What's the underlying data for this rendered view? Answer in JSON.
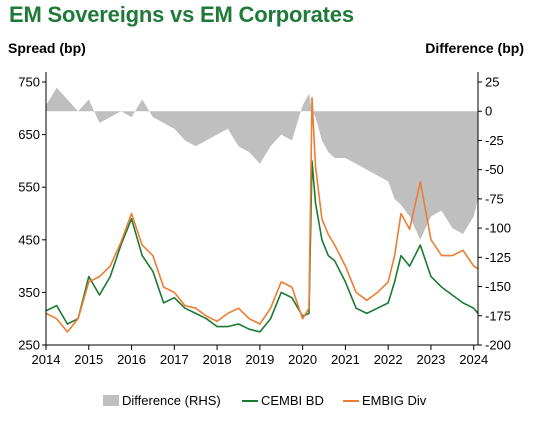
{
  "chart_data": {
    "type": "line",
    "title": "EM Sovereigns vs EM Corporates",
    "ylabel_left": "Spread (bp)",
    "ylabel_right": "Difference (bp)",
    "ylim_left": [
      250,
      750
    ],
    "ylim_right": [
      -200,
      25
    ],
    "yticks_left": [
      "750",
      "650",
      "550",
      "450",
      "350",
      "250"
    ],
    "yticks_right": [
      "25",
      "0",
      "-25",
      "-50",
      "-75",
      "-100",
      "-125",
      "-150",
      "-175",
      "-200"
    ],
    "xticks": [
      "2014",
      "2015",
      "2016",
      "2017",
      "2018",
      "2019",
      "2020",
      "2021",
      "2022",
      "2023",
      "2024"
    ],
    "legend": [
      "Difference (RHS)",
      "CEMBI BD",
      "EMBIG Div"
    ],
    "colors": {
      "difference": "#bfbfbf",
      "cembi": "#1a7a32",
      "embig": "#ed7d31",
      "title": "#1f7a3a"
    },
    "series": [
      {
        "name": "CEMBI BD",
        "x": [
          2014.0,
          2014.25,
          2014.5,
          2014.75,
          2015.0,
          2015.25,
          2015.5,
          2015.75,
          2016.0,
          2016.25,
          2016.5,
          2016.75,
          2017.0,
          2017.25,
          2017.5,
          2017.75,
          2018.0,
          2018.25,
          2018.5,
          2018.75,
          2019.0,
          2019.25,
          2019.5,
          2019.75,
          2020.0,
          2020.15,
          2020.22,
          2020.3,
          2020.45,
          2020.6,
          2020.75,
          2021.0,
          2021.25,
          2021.5,
          2021.75,
          2022.0,
          2022.15,
          2022.3,
          2022.5,
          2022.75,
          2023.0,
          2023.25,
          2023.5,
          2023.75,
          2024.0,
          2024.1
        ],
        "values": [
          315,
          325,
          290,
          300,
          380,
          345,
          380,
          440,
          490,
          420,
          390,
          330,
          340,
          320,
          310,
          300,
          285,
          285,
          290,
          280,
          275,
          300,
          350,
          340,
          305,
          310,
          600,
          520,
          450,
          420,
          410,
          370,
          320,
          310,
          320,
          330,
          370,
          420,
          400,
          440,
          380,
          360,
          345,
          330,
          320,
          310
        ]
      },
      {
        "name": "EMBIG Div",
        "x": [
          2014.0,
          2014.25,
          2014.5,
          2014.75,
          2015.0,
          2015.25,
          2015.5,
          2015.75,
          2016.0,
          2016.25,
          2016.5,
          2016.75,
          2017.0,
          2017.25,
          2017.5,
          2017.75,
          2018.0,
          2018.25,
          2018.5,
          2018.75,
          2019.0,
          2019.25,
          2019.5,
          2019.75,
          2020.0,
          2020.15,
          2020.22,
          2020.3,
          2020.45,
          2020.6,
          2020.75,
          2021.0,
          2021.25,
          2021.5,
          2021.75,
          2022.0,
          2022.15,
          2022.3,
          2022.5,
          2022.75,
          2023.0,
          2023.25,
          2023.5,
          2023.75,
          2024.0,
          2024.1
        ],
        "values": [
          310,
          300,
          275,
          300,
          370,
          380,
          400,
          445,
          500,
          440,
          420,
          360,
          350,
          325,
          320,
          305,
          295,
          310,
          320,
          300,
          290,
          320,
          370,
          360,
          300,
          320,
          720,
          590,
          490,
          460,
          440,
          400,
          350,
          335,
          350,
          370,
          420,
          500,
          470,
          560,
          450,
          420,
          420,
          430,
          400,
          395
        ]
      },
      {
        "name": "Difference (RHS)",
        "x": [
          2014.0,
          2014.25,
          2014.5,
          2014.75,
          2015.0,
          2015.25,
          2015.5,
          2015.75,
          2016.0,
          2016.25,
          2016.5,
          2016.75,
          2017.0,
          2017.25,
          2017.5,
          2017.75,
          2018.0,
          2018.25,
          2018.5,
          2018.75,
          2019.0,
          2019.25,
          2019.5,
          2019.75,
          2020.0,
          2020.15,
          2020.22,
          2020.3,
          2020.45,
          2020.6,
          2020.75,
          2021.0,
          2021.25,
          2021.5,
          2021.75,
          2022.0,
          2022.15,
          2022.3,
          2022.5,
          2022.75,
          2023.0,
          2023.25,
          2023.5,
          2023.75,
          2024.0,
          2024.1
        ],
        "values": [
          5,
          20,
          10,
          0,
          10,
          -10,
          -5,
          0,
          -5,
          10,
          -5,
          -10,
          -15,
          -25,
          -30,
          -25,
          -20,
          -15,
          -30,
          -35,
          -45,
          -30,
          -20,
          -25,
          5,
          15,
          0,
          -5,
          -25,
          -35,
          -40,
          -40,
          -45,
          -50,
          -55,
          -60,
          -75,
          -80,
          -90,
          -110,
          -90,
          -85,
          -100,
          -105,
          -90,
          -75
        ]
      }
    ]
  }
}
